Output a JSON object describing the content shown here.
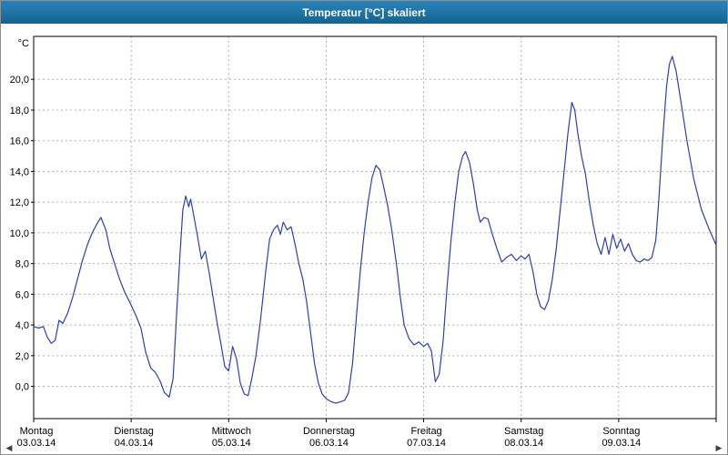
{
  "window": {
    "title": "Temperatur [°C] skaliert"
  },
  "icons": {
    "scroll_left": "◀",
    "scroll_right": "▶"
  },
  "colors": {
    "titlebar_bg_top": "#2b84ba",
    "titlebar_bg_bottom": "#14638f",
    "titlebar_text": "#ffffff",
    "window_bg": "#ffffff",
    "border": "#8e8e8e"
  },
  "chart_data": {
    "type": "line",
    "title": "Temperatur [°C] skaliert",
    "y_unit_label": "°C",
    "ylim": [
      -2.1,
      22.8
    ],
    "y_ticks": [
      0,
      2,
      4,
      6,
      8,
      10,
      12,
      14,
      16,
      18,
      20
    ],
    "y_tick_labels": [
      "0,0",
      "2,0",
      "4,0",
      "6,0",
      "8,0",
      "10,0",
      "12,0",
      "14,0",
      "16,0",
      "18,0",
      "20,0"
    ],
    "x_unit": "days",
    "grid": true,
    "grid_color": "#b0b0b0",
    "axis_color": "#000000",
    "line_color": "#2f3fae",
    "legend": "none",
    "x_categories": [
      {
        "weekday": "Montag",
        "date": "03.03.14"
      },
      {
        "weekday": "Dienstag",
        "date": "04.03.14"
      },
      {
        "weekday": "Mittwoch",
        "date": "05.03.14"
      },
      {
        "weekday": "Donnerstag",
        "date": "06.03.14"
      },
      {
        "weekday": "Freitag",
        "date": "07.03.14"
      },
      {
        "weekday": "Samstag",
        "date": "08.03.14"
      },
      {
        "weekday": "Sonntag",
        "date": "09.03.14"
      }
    ],
    "series": [
      {
        "name": "Temperatur",
        "points": [
          [
            0.0,
            3.9
          ],
          [
            0.05,
            3.8
          ],
          [
            0.1,
            3.9
          ],
          [
            0.14,
            3.2
          ],
          [
            0.18,
            2.8
          ],
          [
            0.22,
            3.0
          ],
          [
            0.26,
            4.3
          ],
          [
            0.3,
            4.1
          ],
          [
            0.35,
            4.8
          ],
          [
            0.4,
            5.8
          ],
          [
            0.45,
            7.0
          ],
          [
            0.5,
            8.2
          ],
          [
            0.55,
            9.2
          ],
          [
            0.6,
            10.0
          ],
          [
            0.65,
            10.6
          ],
          [
            0.69,
            11.0
          ],
          [
            0.74,
            10.2
          ],
          [
            0.78,
            9.0
          ],
          [
            0.83,
            8.0
          ],
          [
            0.88,
            7.0
          ],
          [
            0.93,
            6.2
          ],
          [
            1.0,
            5.3
          ],
          [
            1.05,
            4.6
          ],
          [
            1.1,
            3.8
          ],
          [
            1.15,
            2.2
          ],
          [
            1.2,
            1.2
          ],
          [
            1.25,
            0.9
          ],
          [
            1.3,
            0.3
          ],
          [
            1.34,
            -0.4
          ],
          [
            1.39,
            -0.7
          ],
          [
            1.43,
            0.5
          ],
          [
            1.46,
            4.0
          ],
          [
            1.5,
            8.5
          ],
          [
            1.53,
            11.5
          ],
          [
            1.56,
            12.4
          ],
          [
            1.59,
            11.7
          ],
          [
            1.61,
            12.2
          ],
          [
            1.64,
            11.2
          ],
          [
            1.68,
            9.8
          ],
          [
            1.72,
            8.3
          ],
          [
            1.76,
            8.8
          ],
          [
            1.8,
            7.4
          ],
          [
            1.84,
            5.8
          ],
          [
            1.88,
            4.2
          ],
          [
            1.92,
            2.8
          ],
          [
            1.96,
            1.3
          ],
          [
            2.0,
            1.0
          ],
          [
            2.04,
            2.6
          ],
          [
            2.08,
            1.8
          ],
          [
            2.12,
            0.2
          ],
          [
            2.16,
            -0.5
          ],
          [
            2.2,
            -0.6
          ],
          [
            2.24,
            0.6
          ],
          [
            2.28,
            2.0
          ],
          [
            2.33,
            4.5
          ],
          [
            2.38,
            7.5
          ],
          [
            2.42,
            9.6
          ],
          [
            2.46,
            10.2
          ],
          [
            2.5,
            10.5
          ],
          [
            2.53,
            9.9
          ],
          [
            2.56,
            10.7
          ],
          [
            2.6,
            10.2
          ],
          [
            2.64,
            10.4
          ],
          [
            2.68,
            9.3
          ],
          [
            2.72,
            8.0
          ],
          [
            2.76,
            7.0
          ],
          [
            2.8,
            5.5
          ],
          [
            2.84,
            3.5
          ],
          [
            2.88,
            1.5
          ],
          [
            2.92,
            0.2
          ],
          [
            2.96,
            -0.5
          ],
          [
            3.0,
            -0.8
          ],
          [
            3.05,
            -1.0
          ],
          [
            3.1,
            -1.1
          ],
          [
            3.15,
            -1.0
          ],
          [
            3.19,
            -0.9
          ],
          [
            3.23,
            -0.4
          ],
          [
            3.27,
            1.5
          ],
          [
            3.31,
            4.5
          ],
          [
            3.35,
            7.5
          ],
          [
            3.39,
            10.0
          ],
          [
            3.43,
            12.0
          ],
          [
            3.47,
            13.6
          ],
          [
            3.51,
            14.4
          ],
          [
            3.55,
            14.1
          ],
          [
            3.59,
            13.0
          ],
          [
            3.63,
            11.8
          ],
          [
            3.67,
            10.3
          ],
          [
            3.72,
            8.0
          ],
          [
            3.76,
            5.8
          ],
          [
            3.8,
            4.0
          ],
          [
            3.85,
            3.1
          ],
          [
            3.9,
            2.7
          ],
          [
            3.95,
            2.9
          ],
          [
            4.0,
            2.6
          ],
          [
            4.04,
            2.8
          ],
          [
            4.08,
            2.3
          ],
          [
            4.12,
            0.3
          ],
          [
            4.16,
            0.8
          ],
          [
            4.2,
            3.0
          ],
          [
            4.24,
            6.5
          ],
          [
            4.28,
            9.5
          ],
          [
            4.32,
            12.0
          ],
          [
            4.36,
            14.0
          ],
          [
            4.4,
            15.0
          ],
          [
            4.43,
            15.3
          ],
          [
            4.47,
            14.6
          ],
          [
            4.51,
            13.2
          ],
          [
            4.55,
            11.5
          ],
          [
            4.58,
            10.7
          ],
          [
            4.62,
            11.0
          ],
          [
            4.66,
            10.9
          ],
          [
            4.7,
            10.0
          ],
          [
            4.75,
            9.0
          ],
          [
            4.8,
            8.1
          ],
          [
            4.85,
            8.4
          ],
          [
            4.9,
            8.6
          ],
          [
            4.95,
            8.2
          ],
          [
            5.0,
            8.5
          ],
          [
            5.04,
            8.3
          ],
          [
            5.08,
            8.6
          ],
          [
            5.12,
            7.5
          ],
          [
            5.16,
            6.0
          ],
          [
            5.2,
            5.2
          ],
          [
            5.24,
            5.0
          ],
          [
            5.28,
            5.6
          ],
          [
            5.32,
            7.0
          ],
          [
            5.36,
            9.0
          ],
          [
            5.4,
            11.5
          ],
          [
            5.44,
            14.0
          ],
          [
            5.48,
            16.5
          ],
          [
            5.52,
            18.5
          ],
          [
            5.55,
            18.0
          ],
          [
            5.58,
            16.5
          ],
          [
            5.62,
            15.0
          ],
          [
            5.66,
            13.8
          ],
          [
            5.7,
            12.0
          ],
          [
            5.74,
            10.5
          ],
          [
            5.78,
            9.3
          ],
          [
            5.82,
            8.6
          ],
          [
            5.86,
            9.7
          ],
          [
            5.9,
            8.6
          ],
          [
            5.94,
            9.9
          ],
          [
            5.98,
            9.0
          ],
          [
            6.02,
            9.6
          ],
          [
            6.06,
            8.8
          ],
          [
            6.1,
            9.3
          ],
          [
            6.14,
            8.6
          ],
          [
            6.18,
            8.2
          ],
          [
            6.22,
            8.1
          ],
          [
            6.26,
            8.3
          ],
          [
            6.3,
            8.2
          ],
          [
            6.34,
            8.4
          ],
          [
            6.38,
            9.5
          ],
          [
            6.41,
            12.0
          ],
          [
            6.45,
            16.0
          ],
          [
            6.49,
            19.5
          ],
          [
            6.52,
            21.0
          ],
          [
            6.55,
            21.5
          ],
          [
            6.59,
            20.5
          ],
          [
            6.64,
            18.5
          ],
          [
            6.7,
            16.0
          ],
          [
            6.77,
            13.5
          ],
          [
            6.85,
            11.5
          ],
          [
            6.93,
            10.2
          ],
          [
            7.0,
            9.2
          ]
        ]
      }
    ]
  }
}
